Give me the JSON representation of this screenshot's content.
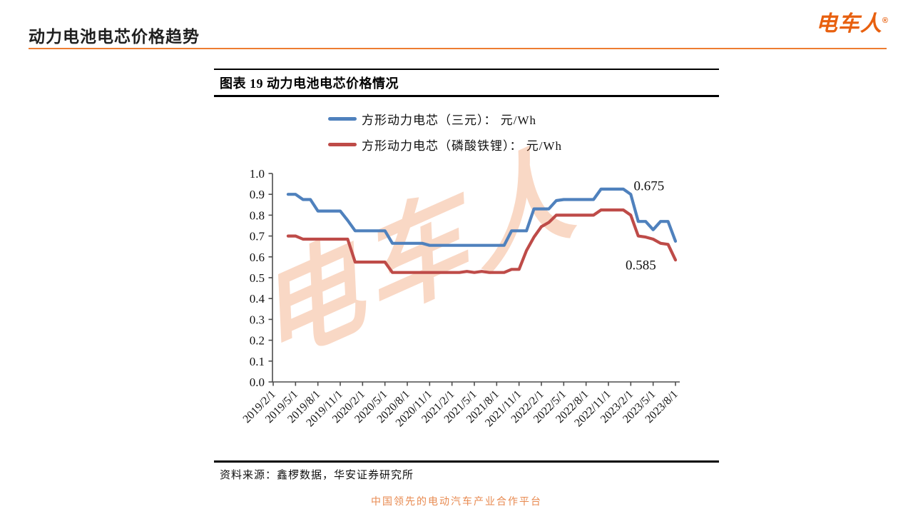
{
  "page": {
    "title": "动力电池电芯价格趋势",
    "logo": {
      "text": "电车人",
      "reg": "®",
      "color": "#E8600F"
    },
    "accent_color": "#ED7D31",
    "watermark_text": "电车人",
    "watermark_color": "#E96B25",
    "footer_tagline": "中国领先的电动汽车产业合作平台",
    "footer_color": "#E88A50"
  },
  "chart_card": {
    "title": "图表 19 动力电池电芯价格情况",
    "source_label": "资料来源：鑫椤数据，华安证券研究所"
  },
  "chart_data": {
    "type": "line",
    "title": "图表 19 动力电池电芯价格情况",
    "unit": "元/Wh",
    "ylim": [
      0.0,
      1.0
    ],
    "ytick_step": 0.1,
    "grid": false,
    "legend_position": "top",
    "axis_color": "#4d4d4d",
    "x_tick_labels": [
      "2019/2/1",
      "2019/5/1",
      "2019/8/1",
      "2019/11/1",
      "2020/2/1",
      "2020/5/1",
      "2020/8/1",
      "2020/11/1",
      "2021/2/1",
      "2021/5/1",
      "2021/8/1",
      "2021/11/1",
      "2022/2/1",
      "2022/5/1",
      "2022/8/1",
      "2022/11/1",
      "2023/2/1",
      "2023/5/1",
      "2023/8/1"
    ],
    "x_months_total": 54,
    "x_start_label": "2019/2/1",
    "series_start_month": "2019/4",
    "series_start_index": 2,
    "series": [
      {
        "name": "方形动力电芯（三元）： 元/Wh",
        "color": "#4F81BD",
        "values": [
          0.9,
          0.9,
          0.875,
          0.875,
          0.82,
          0.82,
          0.82,
          0.82,
          0.775,
          0.725,
          0.725,
          0.725,
          0.725,
          0.725,
          0.665,
          0.665,
          0.665,
          0.665,
          0.665,
          0.655,
          0.655,
          0.655,
          0.655,
          0.655,
          0.655,
          0.655,
          0.655,
          0.655,
          0.655,
          0.655,
          0.725,
          0.725,
          0.725,
          0.83,
          0.83,
          0.83,
          0.87,
          0.875,
          0.875,
          0.875,
          0.875,
          0.875,
          0.925,
          0.925,
          0.925,
          0.925,
          0.9,
          0.77,
          0.77,
          0.73,
          0.77,
          0.77,
          0.675
        ]
      },
      {
        "name": "方形动力电芯（磷酸铁锂）： 元/Wh",
        "color": "#BE4B48",
        "values": [
          0.7,
          0.7,
          0.685,
          0.685,
          0.685,
          0.685,
          0.685,
          0.685,
          0.685,
          0.575,
          0.575,
          0.575,
          0.575,
          0.575,
          0.525,
          0.525,
          0.525,
          0.525,
          0.525,
          0.525,
          0.525,
          0.525,
          0.525,
          0.525,
          0.53,
          0.525,
          0.53,
          0.525,
          0.525,
          0.525,
          0.54,
          0.54,
          0.63,
          0.695,
          0.745,
          0.765,
          0.8,
          0.8,
          0.8,
          0.8,
          0.8,
          0.8,
          0.825,
          0.825,
          0.825,
          0.825,
          0.8,
          0.7,
          0.695,
          0.685,
          0.665,
          0.66,
          0.585
        ]
      }
    ],
    "annotations": [
      {
        "text": "0.675",
        "series": "方形动力电芯（三元）",
        "month_index": 48.4,
        "value": 0.92
      },
      {
        "text": "0.585",
        "series": "方形动力电芯（磷酸铁锂）",
        "month_index": 47.3,
        "value": 0.54
      }
    ]
  }
}
